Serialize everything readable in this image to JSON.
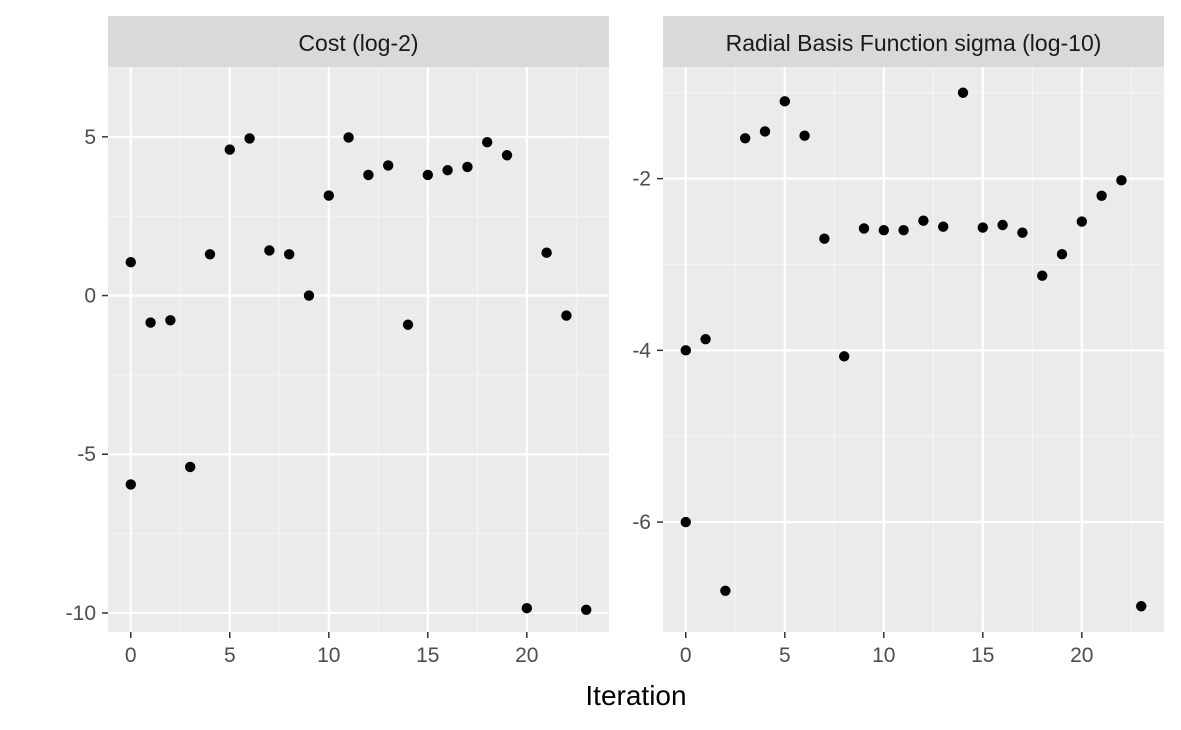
{
  "figure": {
    "xlabel": "Iteration",
    "colors": {
      "panel_background": "#ebebeb",
      "strip_background": "#d9d9d9",
      "grid_major": "#ffffff",
      "grid_minor": "#f5f5f5",
      "point": "#000000",
      "tick_text": "#4d4d4d"
    }
  },
  "chart_data": [
    {
      "type": "scatter",
      "title": "Cost (log-2)",
      "xlabel": "Iteration",
      "ylabel": "",
      "xlim": [
        -1.15,
        24.15
      ],
      "ylim": [
        -10.6,
        7.2
      ],
      "x_ticks": [
        0,
        5,
        10,
        15,
        20
      ],
      "x_tick_labels": [
        "0",
        "5",
        "10",
        "15",
        "20"
      ],
      "y_ticks": [
        5,
        0,
        -5,
        -10
      ],
      "y_tick_labels": [
        "5",
        "0",
        "-5",
        "-10"
      ],
      "grid": true,
      "series": [
        {
          "x": [
            0,
            0,
            1,
            2,
            3,
            4,
            5,
            6,
            7,
            8,
            9,
            10,
            11,
            12,
            13,
            14,
            15,
            16,
            17,
            18,
            19,
            20,
            21,
            22,
            23
          ],
          "y": [
            1.05,
            -5.95,
            -0.85,
            -0.78,
            -5.4,
            1.3,
            4.6,
            4.95,
            1.42,
            1.3,
            0.0,
            3.15,
            4.98,
            3.8,
            4.1,
            -0.92,
            3.8,
            3.95,
            4.05,
            4.83,
            4.42,
            -9.85,
            1.35,
            -0.63,
            -9.9
          ]
        }
      ]
    },
    {
      "type": "scatter",
      "title": "Radial Basis Function sigma (log-10)",
      "xlabel": "Iteration",
      "ylabel": "",
      "xlim": [
        -1.15,
        24.15
      ],
      "ylim": [
        -7.28,
        -0.7
      ],
      "x_ticks": [
        0,
        5,
        10,
        15,
        20
      ],
      "x_tick_labels": [
        "0",
        "5",
        "10",
        "15",
        "20"
      ],
      "y_ticks": [
        -2,
        -4,
        -6
      ],
      "y_tick_labels": [
        "-2",
        "-4",
        "-6"
      ],
      "grid": true,
      "series": [
        {
          "x": [
            0,
            0,
            1,
            2,
            3,
            4,
            5,
            6,
            7,
            8,
            9,
            10,
            11,
            12,
            13,
            14,
            15,
            16,
            17,
            18,
            19,
            20,
            21,
            22,
            23
          ],
          "y": [
            -4.0,
            -6.0,
            -3.87,
            -6.8,
            -1.53,
            -1.45,
            -1.1,
            -1.5,
            -2.7,
            -4.07,
            -2.58,
            -2.6,
            -2.6,
            -2.49,
            -2.56,
            -1.0,
            -2.57,
            -2.54,
            -2.63,
            -3.13,
            -2.88,
            -2.5,
            -2.2,
            -2.02,
            -6.98
          ]
        }
      ]
    }
  ]
}
